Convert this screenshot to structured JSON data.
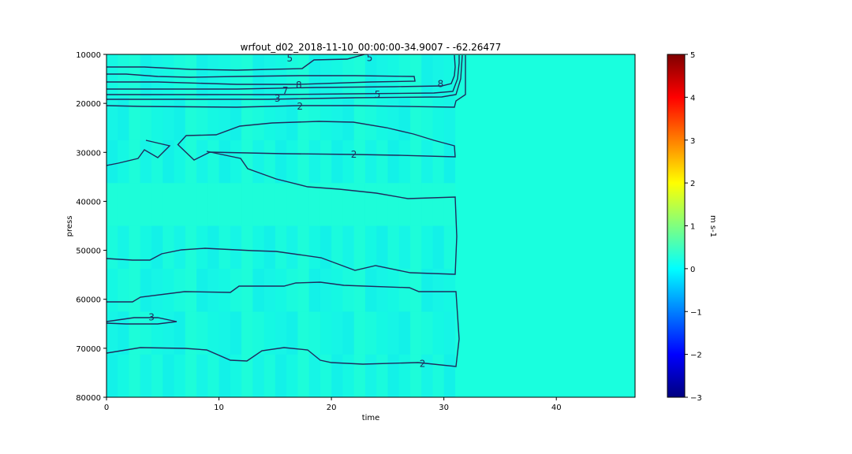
{
  "chart_data": {
    "type": "heatmap",
    "title": "wrfout_d02_2018-11-10_00:00:00-34.9007 - -62.26477",
    "xlabel": "time",
    "ylabel": "press",
    "xlim": [
      0,
      47
    ],
    "ylim": [
      80000,
      10000
    ],
    "y_inverted": true,
    "x_ticks": [
      "0",
      "10",
      "20",
      "30",
      "40"
    ],
    "x_tick_values": [
      0,
      10,
      20,
      30,
      40
    ],
    "y_ticks": [
      "10000",
      "20000",
      "30000",
      "40000",
      "50000",
      "60000",
      "70000",
      "80000"
    ],
    "y_tick_values": [
      10000,
      20000,
      30000,
      40000,
      50000,
      60000,
      70000,
      80000
    ],
    "colorbar": {
      "label": "m s-1",
      "range": [
        -3,
        5
      ],
      "ticks": [
        "5",
        "4",
        "3",
        "2",
        "1",
        "0",
        "−1",
        "−2",
        "−3"
      ],
      "tick_values": [
        5,
        4,
        3,
        2,
        1,
        0,
        -1,
        -2,
        -3
      ],
      "colormap": "jet"
    },
    "background_value": 0,
    "contour_color": "#1f2a5c",
    "contour_labels": [
      {
        "text": "5",
        "x": 16.3,
        "y": 10800
      },
      {
        "text": "5",
        "x": 23.4,
        "y": 10700
      },
      {
        "text": "7",
        "x": 15.9,
        "y": 17400
      },
      {
        "text": "8",
        "x": 17.1,
        "y": 16300
      },
      {
        "text": "8",
        "x": 29.7,
        "y": 16000
      },
      {
        "text": "3",
        "x": 15.2,
        "y": 19000
      },
      {
        "text": "5",
        "x": 24.1,
        "y": 18200
      },
      {
        "text": "2",
        "x": 17.2,
        "y": 20600
      },
      {
        "text": "2",
        "x": 22.0,
        "y": 30400
      },
      {
        "text": "3",
        "x": 4.0,
        "y": 63700
      },
      {
        "text": "2",
        "x": 28.1,
        "y": 73200
      }
    ]
  }
}
